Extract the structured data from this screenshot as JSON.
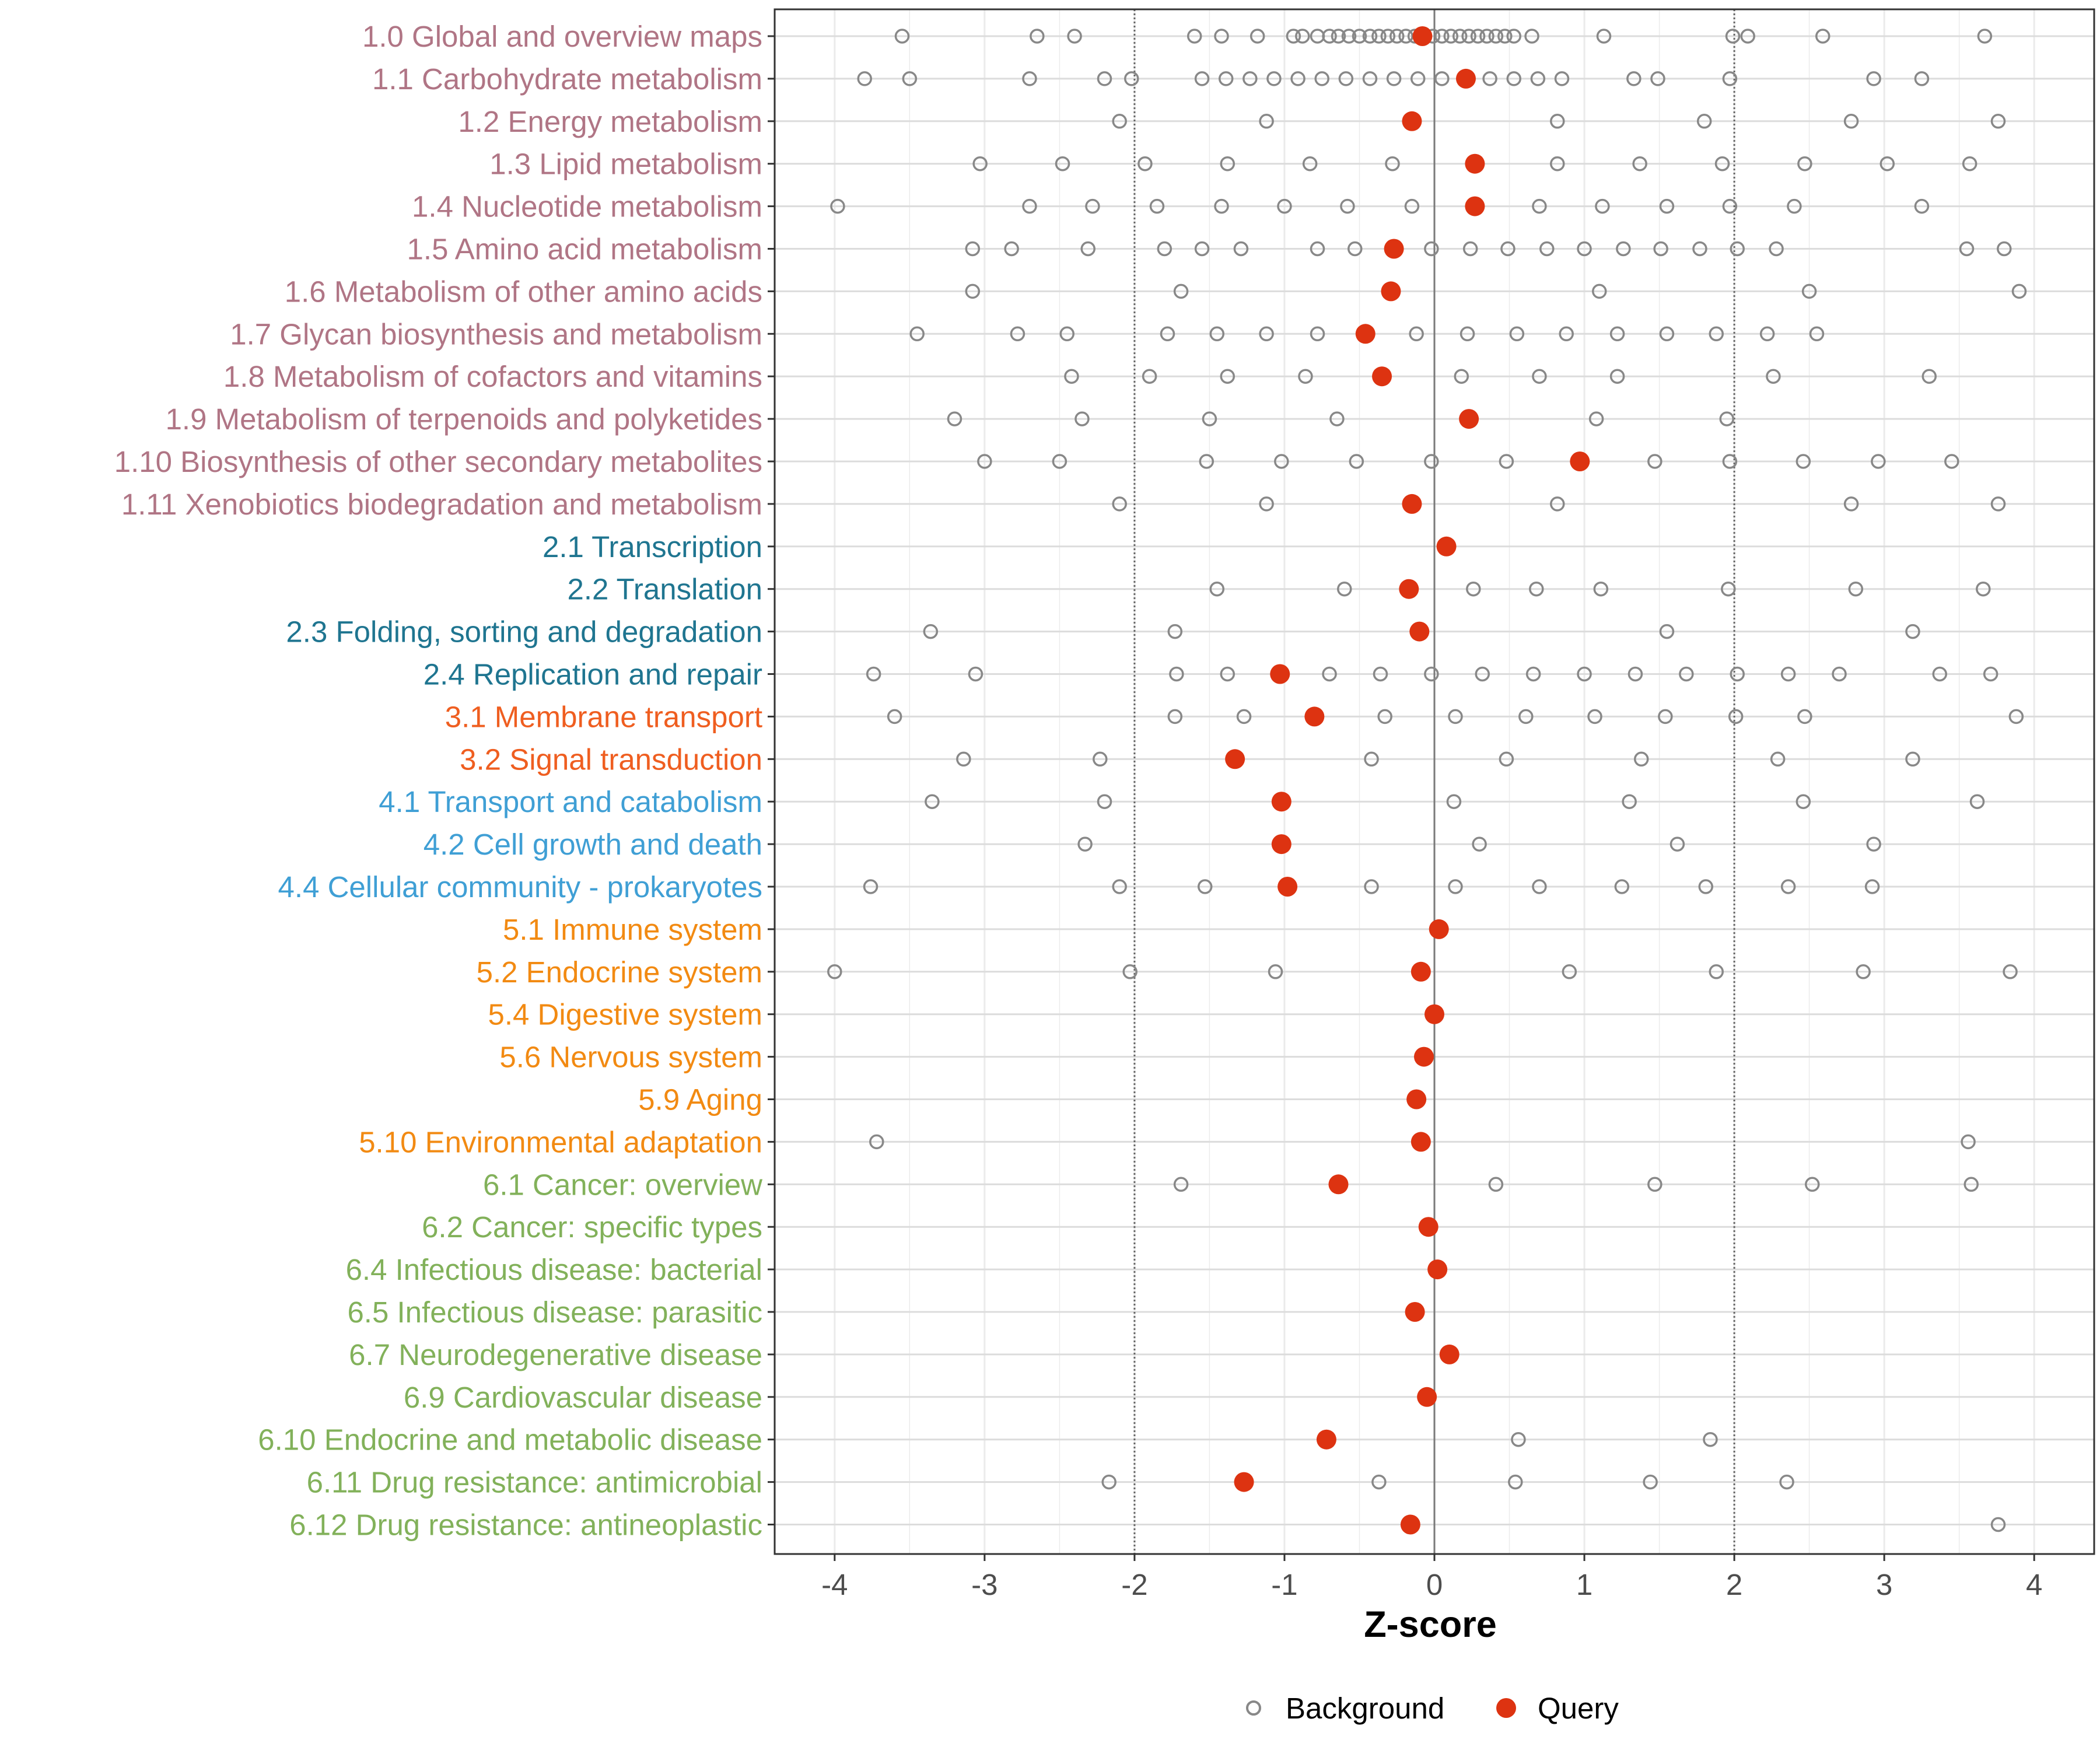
{
  "chart_data": {
    "type": "scatter",
    "xlabel": "Z-score",
    "xlim": [
      -4.4,
      4.4
    ],
    "xticks": [
      -4,
      -3,
      -2,
      -1,
      0,
      1,
      2,
      3,
      4
    ],
    "reference_lines": [
      -2,
      0,
      2
    ],
    "legend": [
      {
        "name": "Background",
        "style": "hollow-circle",
        "color": "#888888"
      },
      {
        "name": "Query",
        "style": "filled-circle",
        "color": "#dd3311"
      }
    ],
    "group_colors": {
      "1": "#b07585",
      "2": "#1f7590",
      "3": "#ef5e20",
      "4": "#3f9fd5",
      "5": "#f28a12",
      "6": "#82b15a"
    },
    "categories": [
      {
        "label": "1.0 Global and overview maps",
        "group": "1",
        "query": -0.08,
        "background": [
          -3.55,
          -2.65,
          -2.4,
          -1.6,
          -1.42,
          -1.18,
          -0.94,
          -0.88,
          -0.78,
          -0.7,
          -0.64,
          -0.57,
          -0.5,
          -0.43,
          -0.37,
          -0.31,
          -0.25,
          -0.19,
          -0.13,
          -0.07,
          -0.01,
          0.05,
          0.11,
          0.17,
          0.23,
          0.29,
          0.35,
          0.41,
          0.47,
          0.53,
          0.65,
          1.13,
          1.99,
          2.09,
          2.59,
          3.67
        ]
      },
      {
        "label": "1.1 Carbohydrate metabolism",
        "group": "1",
        "query": 0.21,
        "background": [
          -3.8,
          -3.5,
          -2.7,
          -2.2,
          -2.02,
          -1.55,
          -1.39,
          -1.23,
          -1.07,
          -0.91,
          -0.75,
          -0.59,
          -0.43,
          -0.27,
          -0.11,
          0.05,
          0.21,
          0.37,
          0.53,
          0.69,
          0.85,
          1.33,
          1.49,
          1.97,
          2.93,
          3.25
        ]
      },
      {
        "label": "1.2 Energy metabolism",
        "group": "1",
        "query": -0.15,
        "background": [
          -2.1,
          -1.12,
          0.82,
          1.8,
          2.78,
          3.76
        ]
      },
      {
        "label": "1.3 Lipid metabolism",
        "group": "1",
        "query": 0.27,
        "background": [
          -3.03,
          -2.48,
          -1.93,
          -1.38,
          -0.83,
          -0.28,
          0.82,
          1.37,
          1.92,
          2.47,
          3.02,
          3.57
        ]
      },
      {
        "label": "1.4 Nucleotide metabolism",
        "group": "1",
        "query": 0.27,
        "background": [
          -3.98,
          -2.7,
          -2.28,
          -1.85,
          -1.42,
          -1.0,
          -0.58,
          -0.15,
          0.7,
          1.12,
          1.55,
          1.97,
          2.4,
          3.25
        ]
      },
      {
        "label": "1.5 Amino acid metabolism",
        "group": "1",
        "query": -0.27,
        "background": [
          -3.08,
          -2.82,
          -2.31,
          -1.8,
          -1.55,
          -1.29,
          -0.78,
          -0.53,
          -0.02,
          0.24,
          0.49,
          0.75,
          1.0,
          1.26,
          1.51,
          1.77,
          2.02,
          2.28,
          3.55,
          3.8
        ]
      },
      {
        "label": "1.6 Metabolism of other amino acids",
        "group": "1",
        "query": -0.29,
        "background": [
          -3.08,
          -1.69,
          1.1,
          2.5,
          3.9
        ]
      },
      {
        "label": "1.7 Glycan biosynthesis and metabolism",
        "group": "1",
        "query": -0.46,
        "background": [
          -3.45,
          -2.78,
          -2.45,
          -1.78,
          -1.45,
          -1.12,
          -0.78,
          -0.12,
          0.22,
          0.55,
          0.88,
          1.22,
          1.55,
          1.88,
          2.22,
          2.55
        ]
      },
      {
        "label": "1.8 Metabolism of cofactors and vitamins",
        "group": "1",
        "query": -0.35,
        "background": [
          -2.42,
          -1.9,
          -1.38,
          -0.86,
          0.18,
          0.7,
          1.22,
          2.26,
          3.3
        ]
      },
      {
        "label": "1.9 Metabolism of terpenoids and polyketides",
        "group": "1",
        "query": 0.23,
        "background": [
          -3.2,
          -2.35,
          -1.5,
          -0.65,
          1.08,
          1.95
        ]
      },
      {
        "label": "1.10 Biosynthesis of other secondary metabolites",
        "group": "1",
        "query": 0.97,
        "background": [
          -3.0,
          -2.5,
          -1.52,
          -1.02,
          -0.52,
          -0.02,
          0.48,
          1.47,
          1.97,
          2.46,
          2.96,
          3.45
        ]
      },
      {
        "label": "1.11 Xenobiotics biodegradation and metabolism",
        "group": "1",
        "query": -0.15,
        "background": [
          -2.1,
          -1.12,
          0.82,
          2.78,
          3.76
        ]
      },
      {
        "label": "2.1 Transcription",
        "group": "2",
        "query": 0.08,
        "background": []
      },
      {
        "label": "2.2 Translation",
        "group": "2",
        "query": -0.17,
        "background": [
          -1.45,
          -0.6,
          0.26,
          0.68,
          1.11,
          1.96,
          2.81,
          3.66
        ]
      },
      {
        "label": "2.3 Folding, sorting and degradation",
        "group": "2",
        "query": -0.1,
        "background": [
          -3.36,
          -1.73,
          1.55,
          3.19
        ]
      },
      {
        "label": "2.4 Replication and repair",
        "group": "2",
        "query": -1.03,
        "background": [
          -3.74,
          -3.06,
          -1.72,
          -1.38,
          -0.7,
          -0.36,
          -0.02,
          0.32,
          0.66,
          1.0,
          1.34,
          1.68,
          2.02,
          2.36,
          2.7,
          3.37,
          3.71
        ]
      },
      {
        "label": "3.1 Membrane transport",
        "group": "3",
        "query": -0.8,
        "background": [
          -3.6,
          -1.73,
          -1.27,
          -0.33,
          0.14,
          0.61,
          1.07,
          1.54,
          2.01,
          2.47,
          3.88
        ]
      },
      {
        "label": "3.2 Signal transduction",
        "group": "3",
        "query": -1.33,
        "background": [
          -3.14,
          -2.23,
          -0.42,
          0.48,
          1.38,
          2.29,
          3.19
        ]
      },
      {
        "label": "4.1 Transport and catabolism",
        "group": "4",
        "query": -1.02,
        "background": [
          -3.35,
          -2.2,
          0.13,
          1.3,
          2.46,
          3.62
        ]
      },
      {
        "label": "4.2 Cell growth and death",
        "group": "4",
        "query": -1.02,
        "background": [
          -2.33,
          0.3,
          1.62,
          2.93
        ]
      },
      {
        "label": "4.4 Cellular community - prokaryotes",
        "group": "4",
        "query": -0.98,
        "background": [
          -3.76,
          -2.1,
          -1.53,
          -0.42,
          0.14,
          0.7,
          1.25,
          1.81,
          2.36,
          2.92
        ]
      },
      {
        "label": "5.1 Immune system",
        "group": "5",
        "query": 0.03,
        "background": []
      },
      {
        "label": "5.2 Endocrine system",
        "group": "5",
        "query": -0.09,
        "background": [
          -4.0,
          -2.03,
          -1.06,
          0.9,
          1.88,
          2.86,
          3.84
        ]
      },
      {
        "label": "5.4 Digestive system",
        "group": "5",
        "query": 0.0,
        "background": []
      },
      {
        "label": "5.6 Nervous system",
        "group": "5",
        "query": -0.07,
        "background": []
      },
      {
        "label": "5.9 Aging",
        "group": "5",
        "query": -0.12,
        "background": []
      },
      {
        "label": "5.10 Environmental adaptation",
        "group": "5",
        "query": -0.09,
        "background": [
          -3.72,
          3.56
        ]
      },
      {
        "label": "6.1 Cancer: overview",
        "group": "6",
        "query": -0.64,
        "background": [
          -1.69,
          0.41,
          1.47,
          2.52,
          3.58
        ]
      },
      {
        "label": "6.2 Cancer: specific types",
        "group": "6",
        "query": -0.04,
        "background": []
      },
      {
        "label": "6.4 Infectious disease: bacterial",
        "group": "6",
        "query": 0.02,
        "background": []
      },
      {
        "label": "6.5 Infectious disease: parasitic",
        "group": "6",
        "query": -0.13,
        "background": []
      },
      {
        "label": "6.7 Neurodegenerative disease",
        "group": "6",
        "query": 0.1,
        "background": []
      },
      {
        "label": "6.9 Cardiovascular disease",
        "group": "6",
        "query": -0.05,
        "background": []
      },
      {
        "label": "6.10 Endocrine and metabolic disease",
        "group": "6",
        "query": -0.72,
        "background": [
          0.56,
          1.84
        ]
      },
      {
        "label": "6.11 Drug resistance: antimicrobial",
        "group": "6",
        "query": -1.27,
        "background": [
          -2.17,
          -0.37,
          0.54,
          1.44,
          2.35
        ]
      },
      {
        "label": "6.12 Drug resistance: antineoplastic",
        "group": "6",
        "query": -0.16,
        "background": [
          3.76
        ]
      }
    ]
  }
}
